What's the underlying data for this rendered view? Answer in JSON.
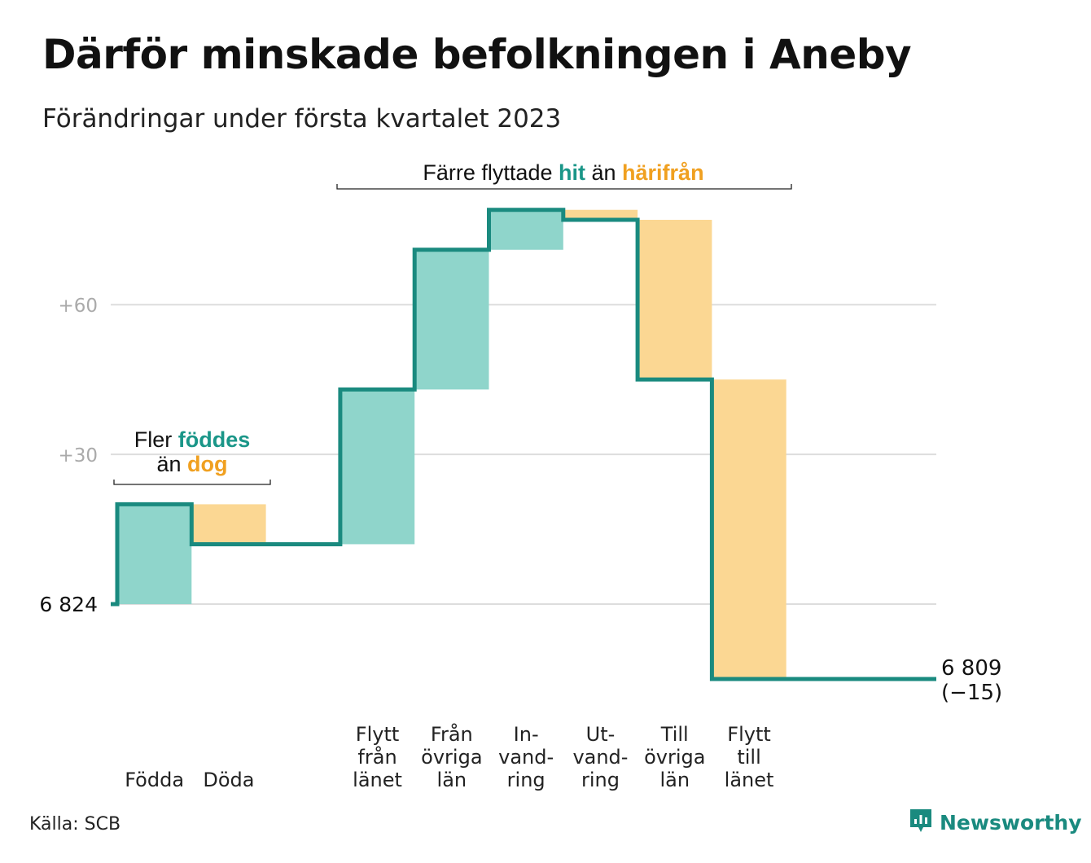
{
  "title": "Därför minskade befolkningen i Aneby",
  "subtitle": "Förändringar under första kvartalet 2023",
  "source": "Källa: SCB",
  "brand": "Newsworthy",
  "colors": {
    "increase": "#8fd5cb",
    "decrease": "#fbd793",
    "line": "#1a8a7f",
    "teal_text": "#1a9688",
    "orange_text": "#f0a020",
    "grid": "#dddddd"
  },
  "annotations": {
    "births_deaths": {
      "line1_a": "Fler ",
      "line1_b": "föddes",
      "line2_a": "än ",
      "line2_b": "dog"
    },
    "migration": {
      "a": "Färre flyttade ",
      "b": "hit",
      "c": " än ",
      "d": "härifrån"
    }
  },
  "end_label": {
    "line1": "6 809",
    "line2": "(−15)"
  },
  "chart_data": {
    "type": "waterfall",
    "start_value": 6824,
    "end_value": 6809,
    "net_change": -15,
    "y_ticks": [
      {
        "value": 0,
        "label": "6 824"
      },
      {
        "value": 30,
        "label": "+30"
      },
      {
        "value": 60,
        "label": "+60"
      }
    ],
    "ylim": [
      -18,
      80
    ],
    "grid": true,
    "steps": [
      {
        "label_lines": [
          "Födda"
        ],
        "value": 20,
        "direction": "increase"
      },
      {
        "label_lines": [
          "Döda"
        ],
        "value": -8,
        "direction": "decrease"
      },
      {
        "label_lines": [
          "Flytt",
          "från",
          "länet"
        ],
        "value": 31,
        "direction": "increase"
      },
      {
        "label_lines": [
          "Från",
          "övriga",
          "län"
        ],
        "value": 28,
        "direction": "increase"
      },
      {
        "label_lines": [
          "In-",
          "vand-",
          "ring"
        ],
        "value": 8,
        "direction": "increase"
      },
      {
        "label_lines": [
          "Ut-",
          "vand-",
          "ring"
        ],
        "value": -2,
        "direction": "decrease"
      },
      {
        "label_lines": [
          "Till",
          "övriga",
          "län"
        ],
        "value": -32,
        "direction": "decrease"
      },
      {
        "label_lines": [
          "Flytt",
          "till",
          "länet"
        ],
        "value": -60,
        "direction": "decrease"
      }
    ]
  }
}
